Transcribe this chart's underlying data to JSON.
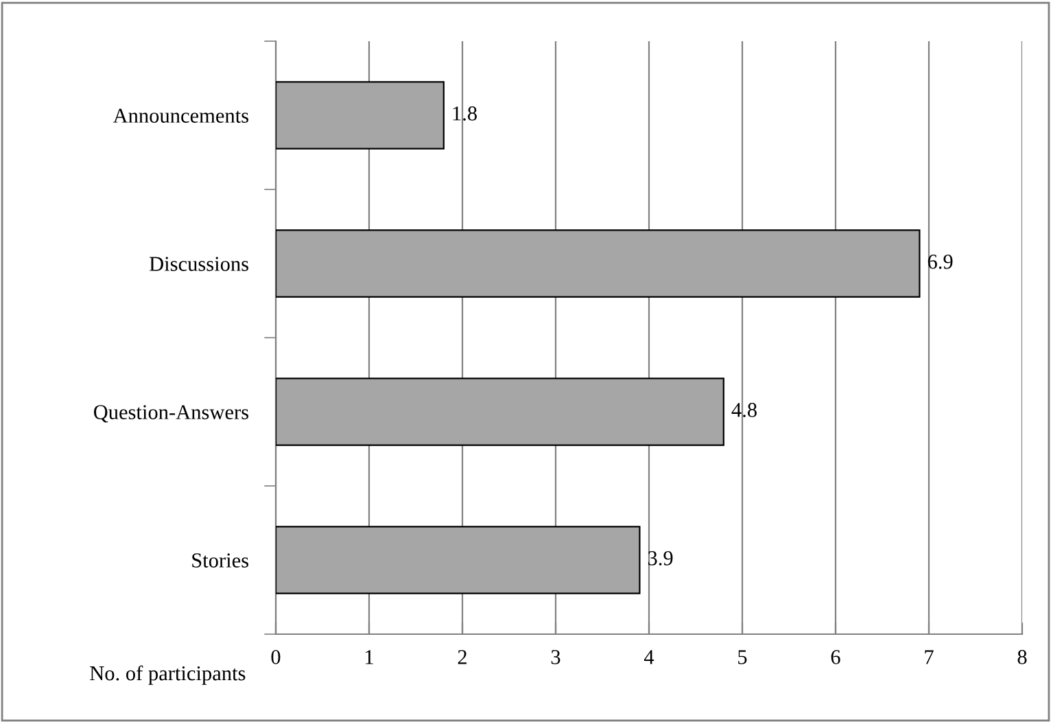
{
  "chart_data": {
    "type": "bar",
    "orientation": "horizontal",
    "xlabel": "No. of participants",
    "categories": [
      "Announcements",
      "Discussions",
      "Question-Answers",
      "Stories"
    ],
    "values": [
      1.8,
      6.9,
      4.8,
      3.9
    ],
    "color": "#a6a6a6",
    "data_labels": true,
    "xlim": [
      0,
      8
    ],
    "xticks": [
      0,
      1,
      2,
      3,
      4,
      5,
      6,
      7,
      8
    ],
    "grid": "x"
  }
}
